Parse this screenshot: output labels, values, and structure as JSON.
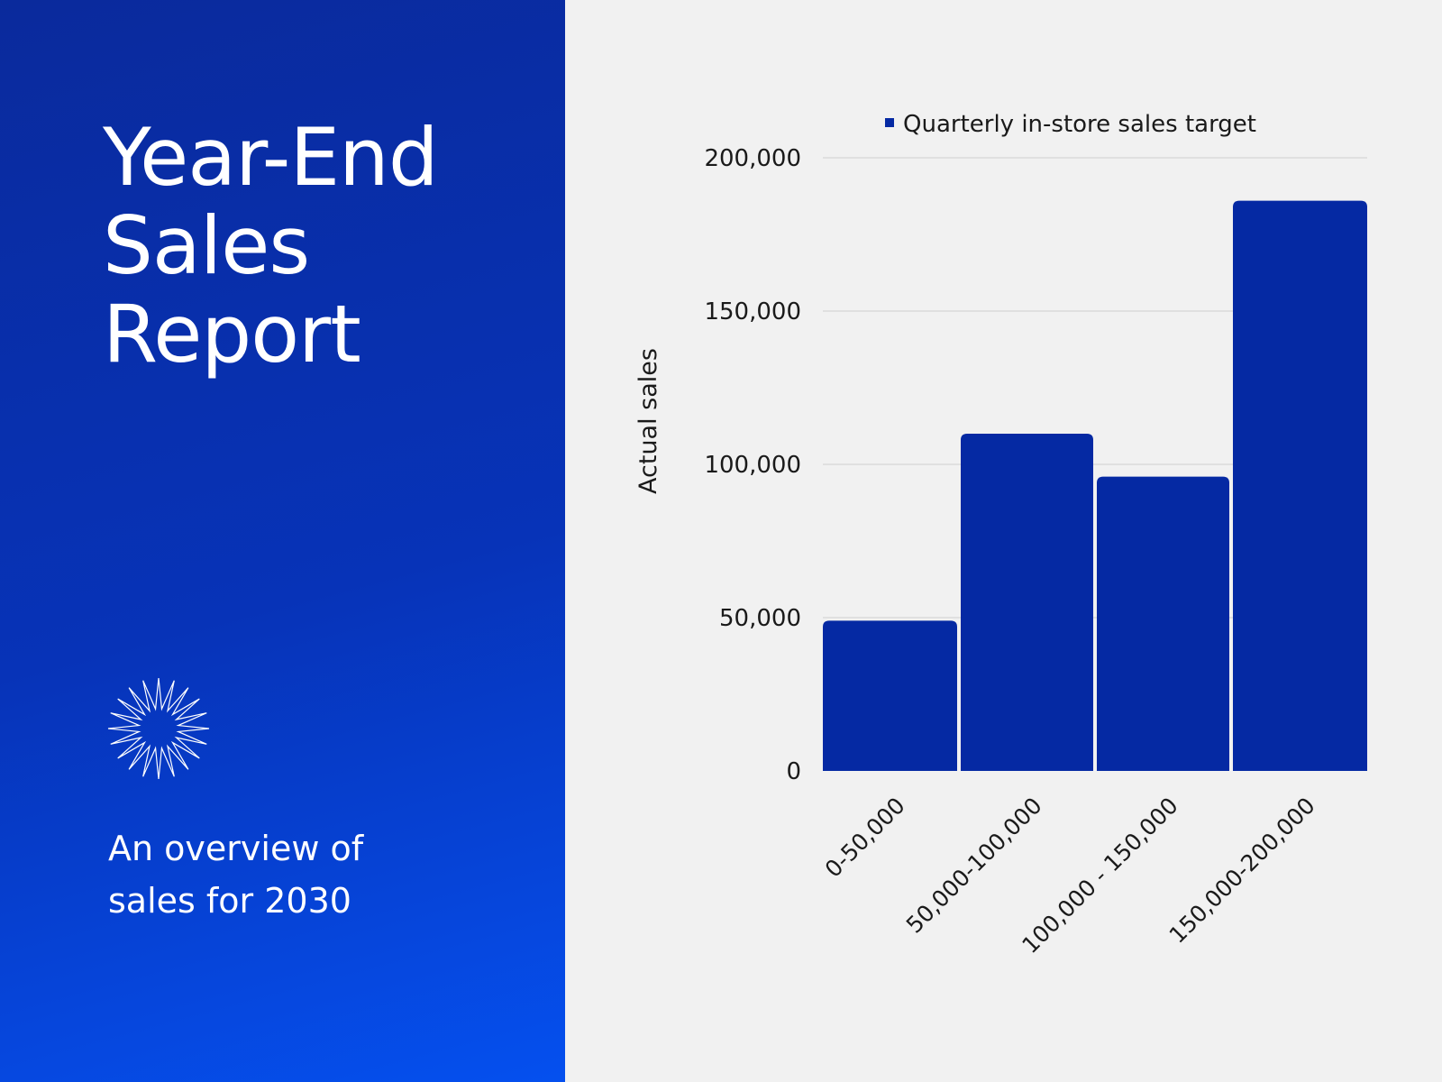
{
  "report": {
    "title_lines": [
      "Year-End",
      "Sales",
      "Report"
    ],
    "subtitle_lines": [
      "An overview of",
      "sales for 2030"
    ]
  },
  "colors": {
    "panel_start": "#0a2a9c",
    "panel_end": "#0550ef",
    "bar": "#0529a3",
    "background": "#f1f1f1"
  },
  "icons": {
    "decoration": "starburst-icon"
  },
  "chart_data": {
    "type": "bar",
    "categories": [
      "0-50,000",
      "50,000-100,000",
      "100,000 - 150,000",
      "150,000-200,000"
    ],
    "series": [
      {
        "name": "Quarterly in-store sales target",
        "values": [
          49000,
          110000,
          96000,
          186000
        ]
      }
    ],
    "ylabel": "Actual sales",
    "xlabel": "",
    "ylim": [
      0,
      200000
    ],
    "yticks": [
      0,
      50000,
      100000,
      150000,
      200000
    ],
    "ytick_labels": [
      "0",
      "50,000",
      "100,000",
      "150,000",
      "200,000"
    ],
    "grid": true,
    "legend": "top"
  }
}
